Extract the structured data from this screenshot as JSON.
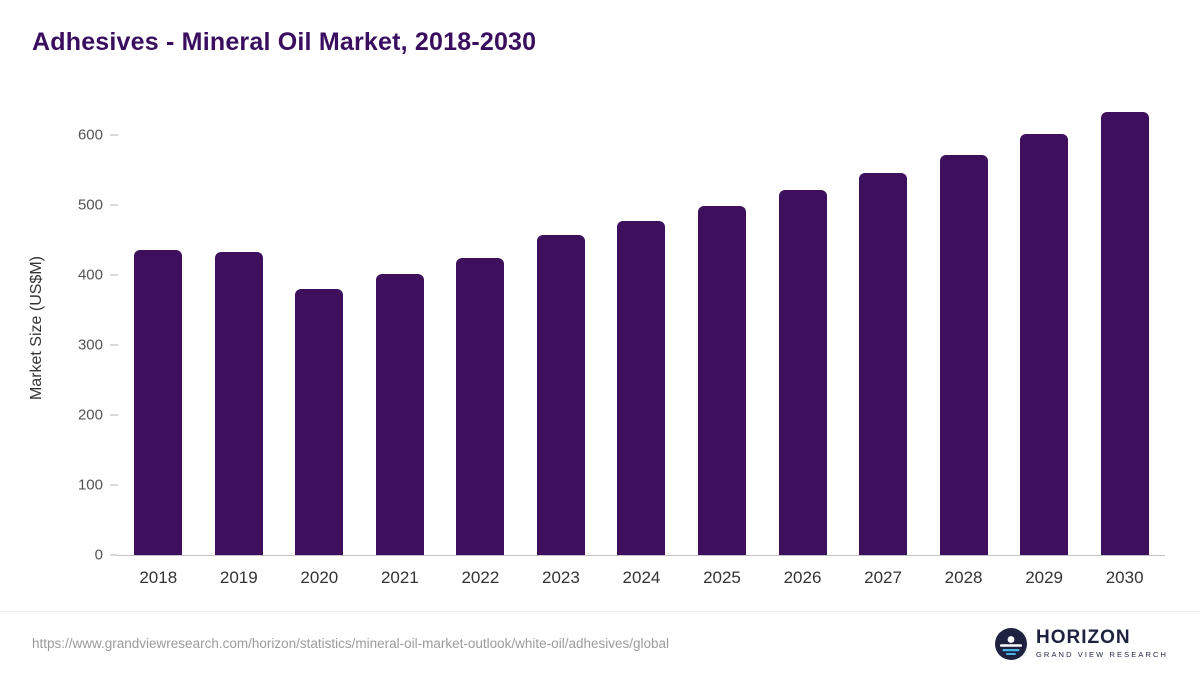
{
  "header": {
    "title": "Adhesives - Mineral Oil Market, 2018-2030"
  },
  "chart_data": {
    "type": "bar",
    "title": "Adhesives - Mineral Oil Market, 2018-2030",
    "categories": [
      "2018",
      "2019",
      "2020",
      "2021",
      "2022",
      "2023",
      "2024",
      "2025",
      "2026",
      "2027",
      "2028",
      "2029",
      "2030"
    ],
    "values": [
      435,
      433,
      380,
      401,
      424,
      457,
      477,
      498,
      521,
      545,
      571,
      601,
      633
    ],
    "xlabel": "",
    "ylabel": "Market Size (US$M)",
    "ylim": [
      0,
      650
    ],
    "yticks": [
      0,
      100,
      200,
      300,
      400,
      500,
      600
    ],
    "grid": false,
    "legend": false,
    "bar_color": "#3d0f5c"
  },
  "footer": {
    "source_url": "https://www.grandviewresearch.com/horizon/statistics/mineral-oil-market-outlook/white-oil/adhesives/global",
    "logo_title": "HORIZON",
    "logo_subtitle": "GRAND VIEW RESEARCH"
  },
  "colors": {
    "bar": "#3d0f5c",
    "title": "#3a0e5f",
    "axis_text": "#555555",
    "logo_navy": "#1e2240",
    "logo_blue": "#45b5e8"
  }
}
